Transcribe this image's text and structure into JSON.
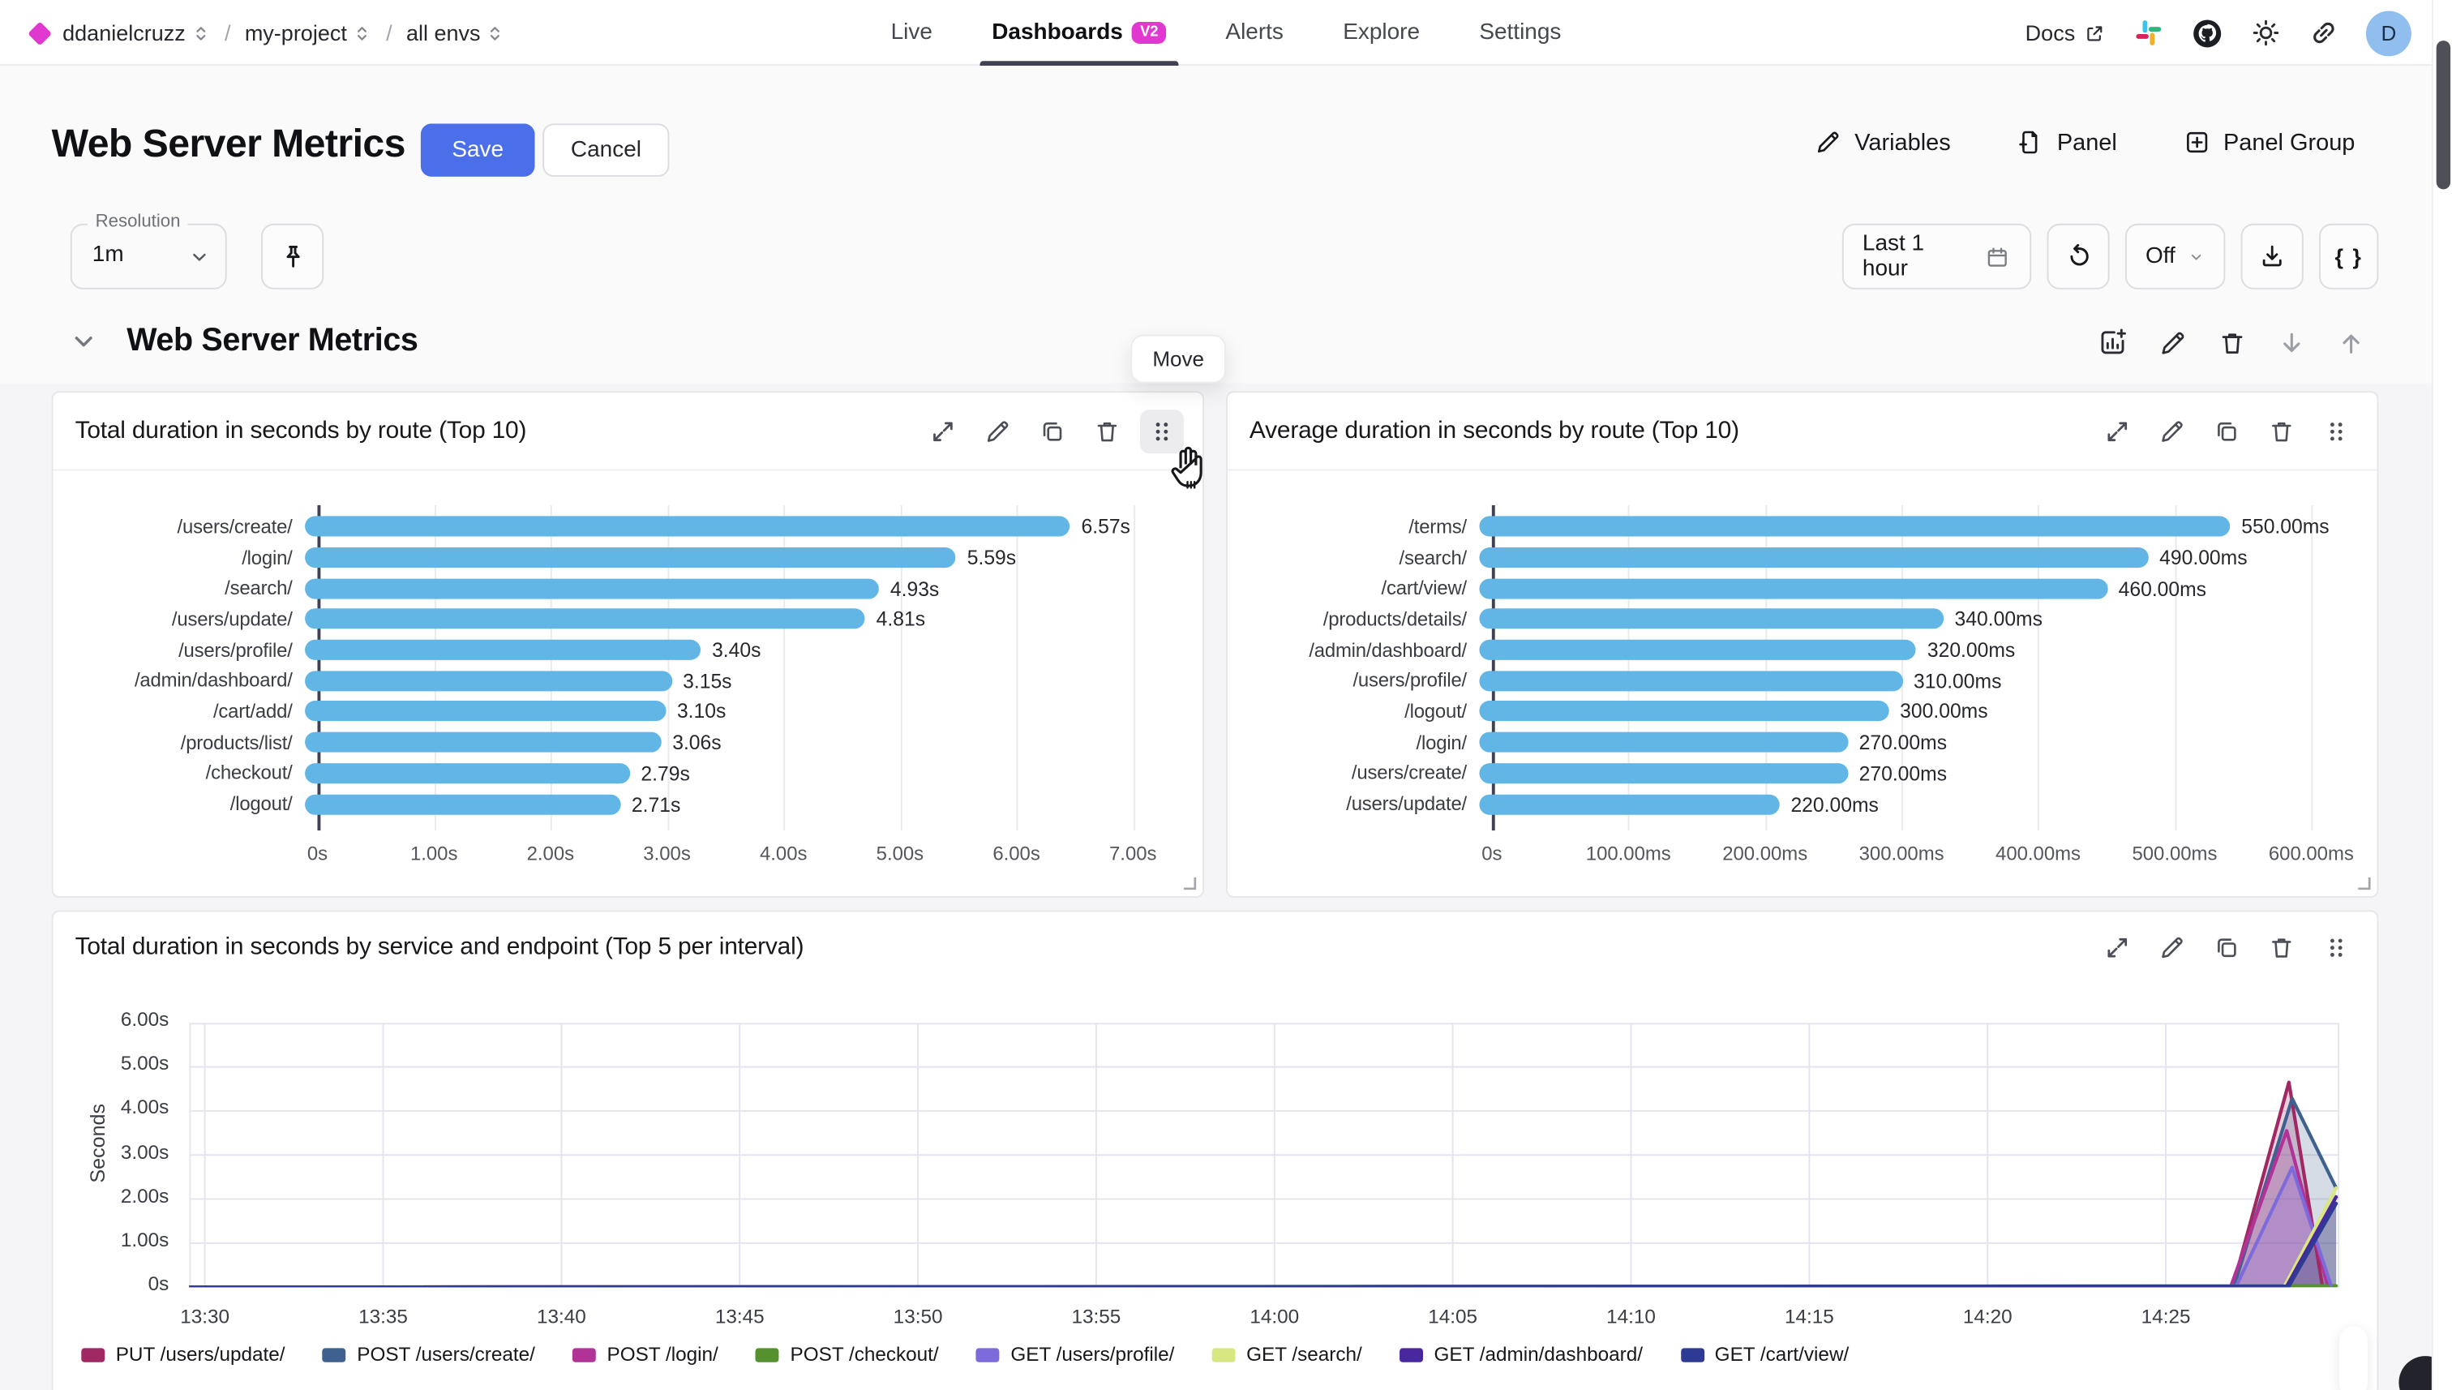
{
  "header": {
    "breadcrumb": [
      {
        "label": "ddanielcruzz"
      },
      {
        "label": "my-project"
      },
      {
        "label": "all envs"
      }
    ],
    "nav": [
      {
        "label": "Live"
      },
      {
        "label": "Dashboards",
        "badge": "V2"
      },
      {
        "label": "Alerts"
      },
      {
        "label": "Explore"
      },
      {
        "label": "Settings"
      }
    ],
    "docs_label": "Docs",
    "avatar_initial": "D"
  },
  "toolbar": {
    "title": "Web Server Metrics",
    "save_label": "Save",
    "cancel_label": "Cancel",
    "variables_label": "Variables",
    "panel_label": "Panel",
    "panel_group_label": "Panel Group"
  },
  "controls": {
    "resolution_label": "Resolution",
    "resolution_value": "1m",
    "time_range_value": "Last 1 hour",
    "refresh_value": "Off",
    "braces_label": "{ }"
  },
  "section": {
    "title": "Web Server Metrics",
    "move_tooltip": "Move"
  },
  "colors": {
    "accent_blue": "#4A6FE8",
    "badge_magenta": "#E139D0",
    "bar_blue": "#62B6E5",
    "nav_underline": "#3E4254"
  },
  "chart_data": [
    {
      "type": "bar",
      "orientation": "horizontal",
      "title": "Total duration in seconds by route (Top 10)",
      "categories": [
        "/users/create/",
        "/login/",
        "/search/",
        "/users/update/",
        "/users/profile/",
        "/admin/dashboard/",
        "/cart/add/",
        "/products/list/",
        "/checkout/",
        "/logout/"
      ],
      "values": [
        6.57,
        5.59,
        4.93,
        4.81,
        3.4,
        3.15,
        3.1,
        3.06,
        2.79,
        2.71
      ],
      "value_labels": [
        "6.57s",
        "5.59s",
        "4.93s",
        "4.81s",
        "3.40s",
        "3.15s",
        "3.10s",
        "3.06s",
        "2.79s",
        "2.71s"
      ],
      "x_ticks": [
        "0s",
        "1.00s",
        "2.00s",
        "3.00s",
        "4.00s",
        "5.00s",
        "6.00s",
        "7.00s"
      ],
      "xlim": [
        0,
        7.3
      ],
      "unit": "s",
      "grid": true,
      "bar_color": "#62B6E5"
    },
    {
      "type": "bar",
      "orientation": "horizontal",
      "title": "Average duration in seconds by route (Top 10)",
      "categories": [
        "/terms/",
        "/search/",
        "/cart/view/",
        "/products/details/",
        "/admin/dashboard/",
        "/users/profile/",
        "/logout/",
        "/login/",
        "/users/create/",
        "/users/update/"
      ],
      "values": [
        550,
        490,
        460,
        340,
        320,
        310,
        300,
        270,
        270,
        220
      ],
      "value_labels": [
        "550.00ms",
        "490.00ms",
        "460.00ms",
        "340.00ms",
        "320.00ms",
        "310.00ms",
        "300.00ms",
        "270.00ms",
        "270.00ms",
        "220.00ms"
      ],
      "x_ticks": [
        "0s",
        "100.00ms",
        "200.00ms",
        "300.00ms",
        "400.00ms",
        "500.00ms",
        "600.00ms"
      ],
      "xlim": [
        0,
        620
      ],
      "unit": "ms",
      "grid": true,
      "bar_color": "#62B6E5"
    },
    {
      "type": "area",
      "title": "Total duration in seconds by service and endpoint (Top 5 per interval)",
      "ylabel": "Seconds",
      "ylim": [
        0,
        6
      ],
      "grid": true,
      "legend_position": "bottom",
      "y_ticks": [
        "0s",
        "1.00s",
        "2.00s",
        "3.00s",
        "4.00s",
        "5.00s",
        "6.00s"
      ],
      "x_ticks": [
        "13:30",
        "13:35",
        "13:40",
        "13:45",
        "13:50",
        "13:55",
        "14:00",
        "14:05",
        "14:10",
        "14:15",
        "14:20",
        "14:25"
      ],
      "series": [
        {
          "name": "PUT /users/update/",
          "color": "#A02963",
          "points": [
            [
              0,
              0
            ],
            [
              0.9505,
              0.02
            ],
            [
              0.9765,
              4.65
            ],
            [
              0.992,
              0.05
            ]
          ]
        },
        {
          "name": "POST /users/create/",
          "color": "#3F618F",
          "points": [
            [
              0,
              0
            ],
            [
              0.951,
              0.02
            ],
            [
              0.978,
              4.28
            ],
            [
              0.9985,
              2.25
            ]
          ]
        },
        {
          "name": "POST /login/",
          "color": "#B13398",
          "points": [
            [
              0,
              0
            ],
            [
              0.9495,
              0.02
            ],
            [
              0.9755,
              3.55
            ],
            [
              0.9945,
              0.05
            ]
          ]
        },
        {
          "name": "POST /checkout/",
          "color": "#55912F",
          "points": [
            [
              0,
              0
            ],
            [
              0.9985,
              0.03
            ]
          ]
        },
        {
          "name": "GET /users/profile/",
          "color": "#7D6BDC",
          "points": [
            [
              0,
              0
            ],
            [
              0.952,
              0.02
            ],
            [
              0.978,
              2.72
            ],
            [
              0.996,
              0.05
            ]
          ]
        },
        {
          "name": "GET /search/",
          "color": "#D9E783",
          "points": [
            [
              0,
              0
            ],
            [
              0.9745,
              0.02
            ],
            [
              0.9985,
              2.25
            ]
          ]
        },
        {
          "name": "GET /admin/dashboard/",
          "color": "#49279E",
          "points": [
            [
              0,
              0
            ],
            [
              0.9755,
              0.02
            ],
            [
              0.9985,
              2.05
            ]
          ]
        },
        {
          "name": "GET /cart/view/",
          "color": "#2E3B94",
          "points": [
            [
              0,
              0
            ],
            [
              0.9765,
              0.02
            ],
            [
              0.9985,
              1.9
            ]
          ]
        }
      ]
    }
  ]
}
